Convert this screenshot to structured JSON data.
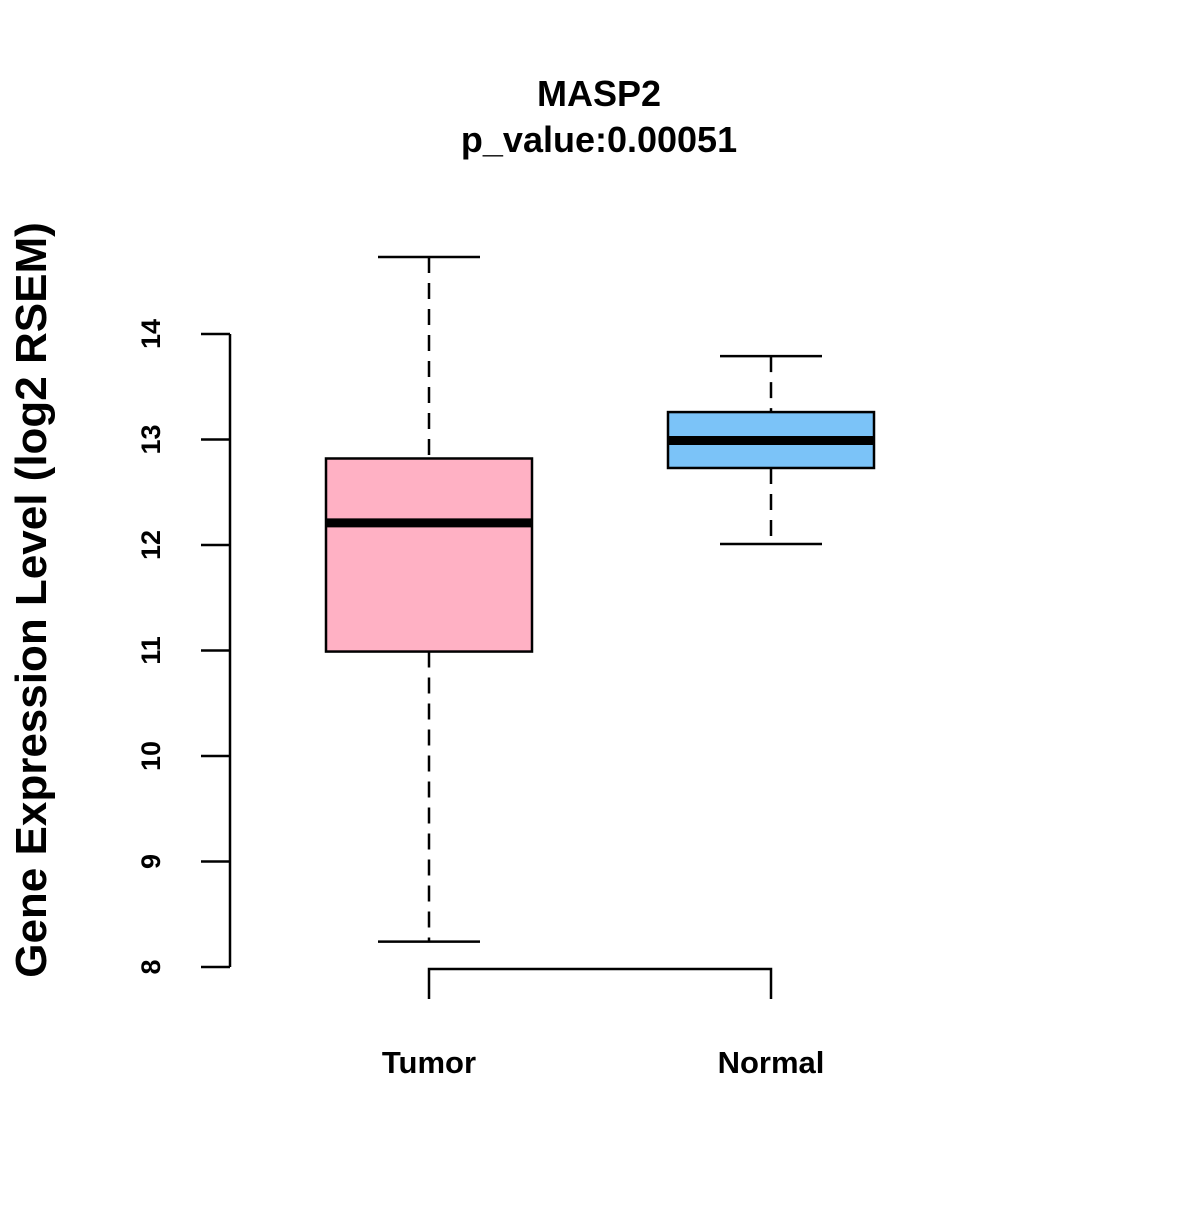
{
  "chart_data": {
    "type": "boxplot",
    "title": "MASP2",
    "subtitle": "p_value:0.00051",
    "xlabel": "",
    "ylabel": "Gene Expression Level (log2 RSEM)",
    "ylim": [
      8,
      14
    ],
    "yticks": [
      "8",
      "9",
      "10",
      "11",
      "12",
      "13",
      "14"
    ],
    "grid": false,
    "categories": [
      "Tumor",
      "Normal"
    ],
    "series": [
      {
        "name": "Tumor",
        "whisker_low": 8.24,
        "q1": 10.99,
        "median": 12.21,
        "q3": 12.82,
        "whisker_high": 14.73,
        "color": "#FFB1C4"
      },
      {
        "name": "Normal",
        "whisker_low": 12.01,
        "q1": 12.73,
        "median": 12.99,
        "q3": 13.26,
        "whisker_high": 13.79,
        "color": "#7BC3F8"
      }
    ],
    "comparison_bracket": {
      "from": "Tumor",
      "to": "Normal"
    }
  }
}
